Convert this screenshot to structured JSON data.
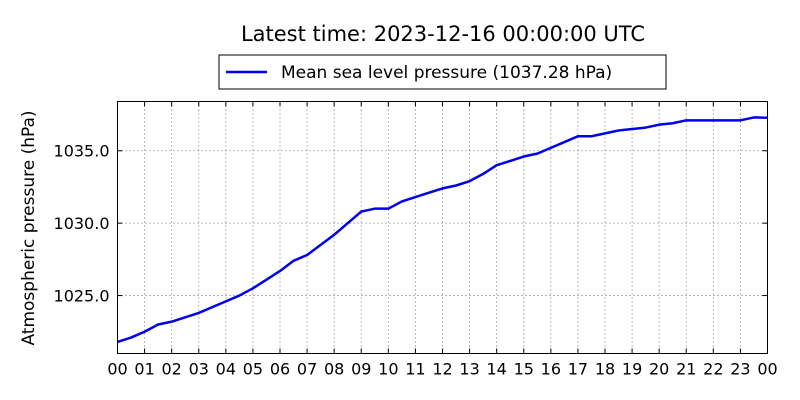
{
  "chart_data": {
    "type": "line",
    "title": "Latest time: 2023-12-16 00:00:00 UTC",
    "xlabel": "",
    "ylabel": "Atmospheric pressure (hPa)",
    "x_tick_labels": [
      "00",
      "01",
      "02",
      "03",
      "04",
      "05",
      "06",
      "07",
      "08",
      "09",
      "10",
      "11",
      "12",
      "13",
      "14",
      "15",
      "16",
      "17",
      "18",
      "19",
      "20",
      "21",
      "22",
      "23",
      "00"
    ],
    "xlim": [
      0,
      24
    ],
    "y_ticks": [
      1025.0,
      1030.0,
      1035.0
    ],
    "y_tick_labels": [
      "1025.0",
      "1030.0",
      "1035.0"
    ],
    "ylim": [
      1021.0,
      1038.4
    ],
    "grid": true,
    "legend_position": "top-center",
    "series": [
      {
        "name": "Mean sea level pressure (1037.28 hPa)",
        "color": "#0000ee",
        "x": [
          0,
          0.5,
          1,
          1.5,
          2,
          2.5,
          3,
          3.5,
          4,
          4.5,
          5,
          5.5,
          6,
          6.5,
          7,
          7.5,
          8,
          8.5,
          9,
          9.5,
          10,
          10.5,
          11,
          11.5,
          12,
          12.5,
          13,
          13.5,
          14,
          14.5,
          15,
          15.5,
          16,
          16.5,
          17,
          17.5,
          18,
          18.5,
          19,
          19.5,
          20,
          20.5,
          21,
          21.5,
          22,
          22.5,
          23,
          23.5,
          24
        ],
        "y": [
          1021.8,
          1022.1,
          1022.5,
          1023.0,
          1023.2,
          1023.5,
          1023.8,
          1024.2,
          1024.6,
          1025.0,
          1025.5,
          1026.1,
          1026.7,
          1027.4,
          1027.8,
          1028.5,
          1029.2,
          1030.0,
          1030.8,
          1031.0,
          1031.0,
          1031.5,
          1031.8,
          1032.1,
          1032.4,
          1032.6,
          1032.9,
          1033.4,
          1034.0,
          1034.3,
          1034.6,
          1034.8,
          1035.2,
          1035.6,
          1036.0,
          1036.0,
          1036.2,
          1036.4,
          1036.5,
          1036.6,
          1036.8,
          1036.9,
          1037.1,
          1037.1,
          1037.1,
          1037.1,
          1037.1,
          1037.3,
          1037.28
        ]
      }
    ]
  }
}
